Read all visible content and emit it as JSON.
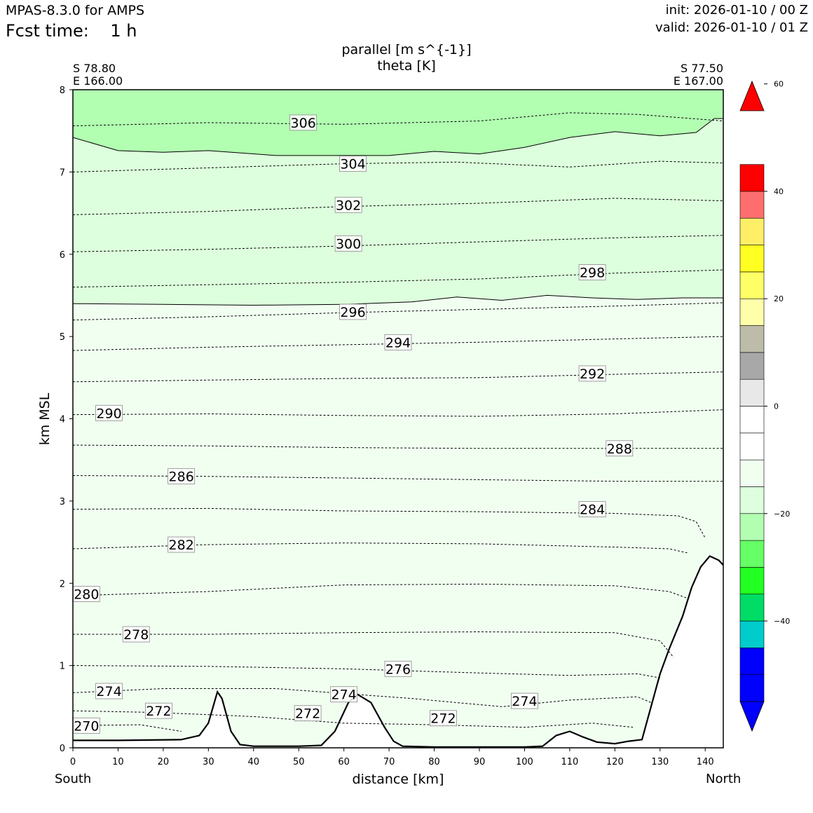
{
  "header": {
    "model": "MPAS-8.3.0 for AMPS",
    "fcst_time": "Fcst time:    1 h",
    "init": "init: 2026-01-10 / 00 Z",
    "valid": "valid: 2026-01-10 / 01 Z"
  },
  "section": {
    "left_lat": "S 78.80",
    "left_lon": "E 166.00",
    "right_lat": "S 77.50",
    "right_lon": "E 167.00",
    "left_end": "South",
    "right_end": "North"
  },
  "chart_data": {
    "type": "contour",
    "title": "parallel [m s^{-1}]",
    "subtitle": "theta [K]",
    "xlabel": "distance [km]",
    "ylabel": "km MSL",
    "xlim": [
      0,
      144
    ],
    "ylim": [
      0,
      8
    ],
    "xticks": [
      0,
      10,
      20,
      30,
      40,
      50,
      60,
      70,
      80,
      90,
      100,
      110,
      120,
      130,
      140
    ],
    "yticks": [
      0,
      1,
      2,
      3,
      4,
      5,
      6,
      7,
      8
    ],
    "terrain": [
      [
        0,
        0.09
      ],
      [
        10,
        0.09
      ],
      [
        24,
        0.1
      ],
      [
        28,
        0.15
      ],
      [
        30,
        0.3
      ],
      [
        32,
        0.68
      ],
      [
        33,
        0.6
      ],
      [
        35,
        0.2
      ],
      [
        37,
        0.04
      ],
      [
        40,
        0.02
      ],
      [
        50,
        0.02
      ],
      [
        55,
        0.03
      ],
      [
        58,
        0.2
      ],
      [
        61,
        0.55
      ],
      [
        63,
        0.65
      ],
      [
        66,
        0.55
      ],
      [
        69,
        0.25
      ],
      [
        71,
        0.08
      ],
      [
        73,
        0.02
      ],
      [
        80,
        0.01
      ],
      [
        100,
        0.01
      ],
      [
        104,
        0.02
      ],
      [
        107,
        0.15
      ],
      [
        110,
        0.2
      ],
      [
        113,
        0.13
      ],
      [
        116,
        0.07
      ],
      [
        120,
        0.05
      ],
      [
        123,
        0.08
      ],
      [
        126,
        0.1
      ],
      [
        128,
        0.5
      ],
      [
        130,
        0.9
      ],
      [
        132,
        1.2
      ],
      [
        135,
        1.6
      ],
      [
        137,
        1.95
      ],
      [
        139,
        2.2
      ],
      [
        141,
        2.33
      ],
      [
        143,
        2.28
      ],
      [
        144,
        2.22
      ]
    ],
    "theta_contours": [
      {
        "value": 306,
        "label": "306",
        "label_at": [
          51,
          7.6
        ],
        "points": [
          [
            0,
            7.56
          ],
          [
            30,
            7.6
          ],
          [
            60,
            7.58
          ],
          [
            90,
            7.62
          ],
          [
            110,
            7.72
          ],
          [
            125,
            7.7
          ],
          [
            144,
            7.62
          ]
        ]
      },
      {
        "value": 304,
        "label": "304",
        "label_at": [
          62,
          7.1
        ],
        "points": [
          [
            0,
            7.0
          ],
          [
            30,
            7.05
          ],
          [
            60,
            7.1
          ],
          [
            85,
            7.12
          ],
          [
            110,
            7.06
          ],
          [
            130,
            7.13
          ],
          [
            144,
            7.11
          ]
        ]
      },
      {
        "value": 302,
        "label": "302",
        "label_at": [
          61,
          6.6
        ],
        "points": [
          [
            0,
            6.48
          ],
          [
            30,
            6.52
          ],
          [
            60,
            6.58
          ],
          [
            90,
            6.62
          ],
          [
            120,
            6.68
          ],
          [
            144,
            6.65
          ]
        ]
      },
      {
        "value": 300,
        "label": "300",
        "label_at": [
          61,
          6.13
        ],
        "points": [
          [
            0,
            6.03
          ],
          [
            30,
            6.06
          ],
          [
            60,
            6.1
          ],
          [
            90,
            6.15
          ],
          [
            120,
            6.2
          ],
          [
            144,
            6.23
          ]
        ]
      },
      {
        "value": 298,
        "label": "298",
        "label_at": [
          115,
          5.78
        ],
        "points": [
          [
            0,
            5.6
          ],
          [
            30,
            5.63
          ],
          [
            60,
            5.66
          ],
          [
            90,
            5.7
          ],
          [
            120,
            5.77
          ],
          [
            144,
            5.81
          ]
        ]
      },
      {
        "value": 296,
        "label": "296",
        "label_at": [
          62,
          5.3
        ],
        "points": [
          [
            0,
            5.2
          ],
          [
            30,
            5.24
          ],
          [
            60,
            5.29
          ],
          [
            90,
            5.33
          ],
          [
            120,
            5.37
          ],
          [
            144,
            5.41
          ]
        ]
      },
      {
        "value": 294,
        "label": "294",
        "label_at": [
          72,
          4.93
        ],
        "points": [
          [
            0,
            4.83
          ],
          [
            30,
            4.87
          ],
          [
            60,
            4.9
          ],
          [
            90,
            4.93
          ],
          [
            120,
            4.97
          ],
          [
            144,
            5.0
          ]
        ]
      },
      {
        "value": 292,
        "label": "292",
        "label_at": [
          115,
          4.55
        ],
        "points": [
          [
            0,
            4.45
          ],
          [
            30,
            4.47
          ],
          [
            60,
            4.49
          ],
          [
            90,
            4.5
          ],
          [
            120,
            4.54
          ],
          [
            144,
            4.57
          ]
        ]
      },
      {
        "value": 290,
        "label": "290",
        "label_at": [
          8,
          4.07
        ],
        "points": [
          [
            0,
            4.05
          ],
          [
            30,
            4.06
          ],
          [
            60,
            4.04
          ],
          [
            90,
            4.03
          ],
          [
            120,
            4.06
          ],
          [
            144,
            4.11
          ]
        ]
      },
      {
        "value": 288,
        "label": "288",
        "label_at": [
          121,
          3.64
        ],
        "points": [
          [
            0,
            3.68
          ],
          [
            30,
            3.67
          ],
          [
            60,
            3.65
          ],
          [
            90,
            3.64
          ],
          [
            120,
            3.64
          ],
          [
            144,
            3.64
          ]
        ]
      },
      {
        "value": 286,
        "label": "286",
        "label_at": [
          24,
          3.3
        ],
        "points": [
          [
            0,
            3.31
          ],
          [
            30,
            3.3
          ],
          [
            60,
            3.28
          ],
          [
            90,
            3.26
          ],
          [
            120,
            3.24
          ],
          [
            144,
            3.24
          ]
        ]
      },
      {
        "value": 284,
        "label": "284",
        "label_at": [
          115,
          2.9
        ],
        "points": [
          [
            0,
            2.9
          ],
          [
            30,
            2.91
          ],
          [
            60,
            2.88
          ],
          [
            90,
            2.87
          ],
          [
            120,
            2.85
          ],
          [
            134,
            2.82
          ],
          [
            138,
            2.75
          ],
          [
            140,
            2.55
          ]
        ]
      },
      {
        "value": 282,
        "label": "282",
        "label_at": [
          24,
          2.47
        ],
        "points": [
          [
            0,
            2.42
          ],
          [
            30,
            2.47
          ],
          [
            60,
            2.49
          ],
          [
            90,
            2.48
          ],
          [
            120,
            2.44
          ],
          [
            132,
            2.42
          ],
          [
            136,
            2.37
          ]
        ]
      },
      {
        "value": 280,
        "label": "280",
        "label_at": [
          3,
          1.87
        ],
        "points": [
          [
            0,
            1.85
          ],
          [
            30,
            1.9
          ],
          [
            60,
            1.98
          ],
          [
            90,
            1.99
          ],
          [
            120,
            1.97
          ],
          [
            132,
            1.9
          ],
          [
            136,
            1.82
          ]
        ]
      },
      {
        "value": 278,
        "label": "278",
        "label_at": [
          14,
          1.38
        ],
        "points": [
          [
            0,
            1.38
          ],
          [
            30,
            1.38
          ],
          [
            60,
            1.4
          ],
          [
            90,
            1.41
          ],
          [
            120,
            1.4
          ],
          [
            130,
            1.3
          ],
          [
            133,
            1.1
          ]
        ]
      },
      {
        "value": 276,
        "label": "276",
        "label_at": [
          72,
          0.96
        ],
        "points": [
          [
            0,
            1.0
          ],
          [
            30,
            0.99
          ],
          [
            60,
            0.96
          ],
          [
            90,
            0.91
          ],
          [
            110,
            0.88
          ],
          [
            125,
            0.9
          ],
          [
            130,
            0.85
          ]
        ]
      },
      {
        "value": 274,
        "label": "274",
        "label_at": [
          8,
          0.69
        ],
        "points": [
          [
            0,
            0.67
          ],
          [
            20,
            0.72
          ],
          [
            45,
            0.72
          ],
          [
            75,
            0.6
          ],
          [
            95,
            0.5
          ],
          [
            110,
            0.58
          ],
          [
            125,
            0.62
          ],
          [
            128,
            0.55
          ]
        ]
      },
      {
        "value": 272,
        "label": "272",
        "label_at": [
          19,
          0.45
        ],
        "points": [
          [
            0,
            0.45
          ],
          [
            18,
            0.43
          ],
          [
            40,
            0.38
          ],
          [
            60,
            0.3
          ],
          [
            80,
            0.28
          ],
          [
            100,
            0.25
          ],
          [
            115,
            0.3
          ],
          [
            124,
            0.25
          ]
        ]
      },
      {
        "value": 270,
        "label": "270",
        "label_at": [
          3,
          0.27
        ],
        "points": [
          [
            0,
            0.27
          ],
          [
            15,
            0.28
          ],
          [
            24,
            0.2
          ]
        ]
      }
    ],
    "contour_labels_extra": [
      {
        "label": "274",
        "label_at": [
          60,
          0.65
        ]
      },
      {
        "label": "274",
        "label_at": [
          100,
          0.57
        ]
      },
      {
        "label": "272",
        "label_at": [
          52,
          0.42
        ]
      },
      {
        "label": "272",
        "label_at": [
          82,
          0.36
        ]
      }
    ],
    "shading_layers": [
      {
        "range": "-15 to -10",
        "color": "#b2ffb2",
        "from_y_left": 7.42,
        "boundary": [
          [
            0,
            7.42
          ],
          [
            10,
            7.26
          ],
          [
            20,
            7.24
          ],
          [
            30,
            7.26
          ],
          [
            45,
            7.2
          ],
          [
            60,
            7.2
          ],
          [
            70,
            7.2
          ],
          [
            80,
            7.25
          ],
          [
            90,
            7.22
          ],
          [
            100,
            7.3
          ],
          [
            110,
            7.42
          ],
          [
            120,
            7.49
          ],
          [
            130,
            7.44
          ],
          [
            138,
            7.48
          ],
          [
            142,
            7.65
          ],
          [
            144,
            7.65
          ]
        ]
      },
      {
        "range": "-10 to -5",
        "color": "#ddffdd",
        "boundary": [
          [
            0,
            5.4
          ],
          [
            20,
            5.39
          ],
          [
            40,
            5.38
          ],
          [
            60,
            5.39
          ],
          [
            75,
            5.42
          ],
          [
            85,
            5.48
          ],
          [
            95,
            5.44
          ],
          [
            105,
            5.5
          ],
          [
            115,
            5.47
          ],
          [
            125,
            5.45
          ],
          [
            135,
            5.47
          ],
          [
            144,
            5.47
          ]
        ]
      },
      {
        "range": "-5 to 0",
        "color": "#f1fff1"
      }
    ],
    "colorbar": {
      "levels": [
        -55,
        -50,
        -45,
        -40,
        -35,
        -30,
        -25,
        -20,
        -15,
        -10,
        -5,
        0,
        5,
        10,
        15,
        20,
        25,
        30,
        35,
        40,
        45,
        50,
        55
      ],
      "colors": [
        "#0000ff",
        "#0000ff",
        "#00cccc",
        "#00dd66",
        "#22ff22",
        "#66ff66",
        "#b2ffb2",
        "#ddffdd",
        "#f1fff1",
        "#ffffff",
        "#ffffff",
        "#e8e8e8",
        "#a8a8a8",
        "#bcbca8",
        "#ffffaa",
        "#ffff66",
        "#ffff22",
        "#ffee66",
        "#ff6e6e",
        "#ff0000"
      ],
      "under_color": "#0000ff",
      "over_color": "#ff0000",
      "tick_values": [
        -40,
        -20,
        0,
        20,
        40,
        60
      ],
      "tick_labels": [
        "−40",
        "−20",
        "0",
        "20",
        "40",
        "60"
      ]
    }
  }
}
